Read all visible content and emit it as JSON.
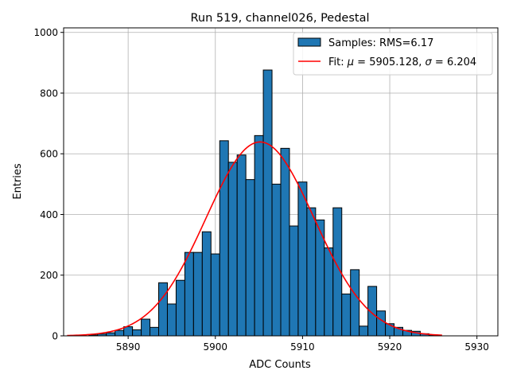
{
  "chart_data": {
    "type": "bar",
    "title": "Run 519, channel026, Pedestal",
    "xlabel": "ADC Counts",
    "ylabel": "Entries",
    "xlim": [
      5882.6,
      5932.4
    ],
    "ylim": [
      0,
      1015
    ],
    "grid": true,
    "legend_position": "top-right",
    "xticks": [
      5890,
      5900,
      5910,
      5920,
      5930
    ],
    "yticks": [
      0,
      200,
      400,
      600,
      800,
      1000
    ],
    "bin_width": 1,
    "histogram": {
      "name": "Samples: RMS=6.17",
      "color": "#1f77b4",
      "bin_centers": [
        5886,
        5887,
        5888,
        5889,
        5890,
        5891,
        5892,
        5893,
        5894,
        5895,
        5896,
        5897,
        5898,
        5899,
        5900,
        5901,
        5902,
        5903,
        5904,
        5905,
        5906,
        5907,
        5908,
        5909,
        5910,
        5911,
        5912,
        5913,
        5914,
        5915,
        5916,
        5917,
        5918,
        5919,
        5920,
        5921,
        5922,
        5923,
        5924,
        5925
      ],
      "counts": [
        3,
        6,
        10,
        18,
        30,
        20,
        55,
        28,
        175,
        105,
        183,
        275,
        275,
        343,
        270,
        643,
        572,
        596,
        515,
        660,
        876,
        500,
        618,
        362,
        507,
        422,
        382,
        290,
        422,
        138,
        218,
        32,
        163,
        82,
        40,
        28,
        18,
        15,
        7,
        3
      ]
    },
    "fit": {
      "name_prefix": "Fit: ",
      "mu_symbol": "μ",
      "sigma_symbol": "σ",
      "mu": "5905.128",
      "sigma": "6.204",
      "color": "#ff0000",
      "mu_value": 5905.128,
      "sigma_value": 6.204,
      "amplitude": 639,
      "x_range": [
        5883,
        5926
      ]
    }
  }
}
